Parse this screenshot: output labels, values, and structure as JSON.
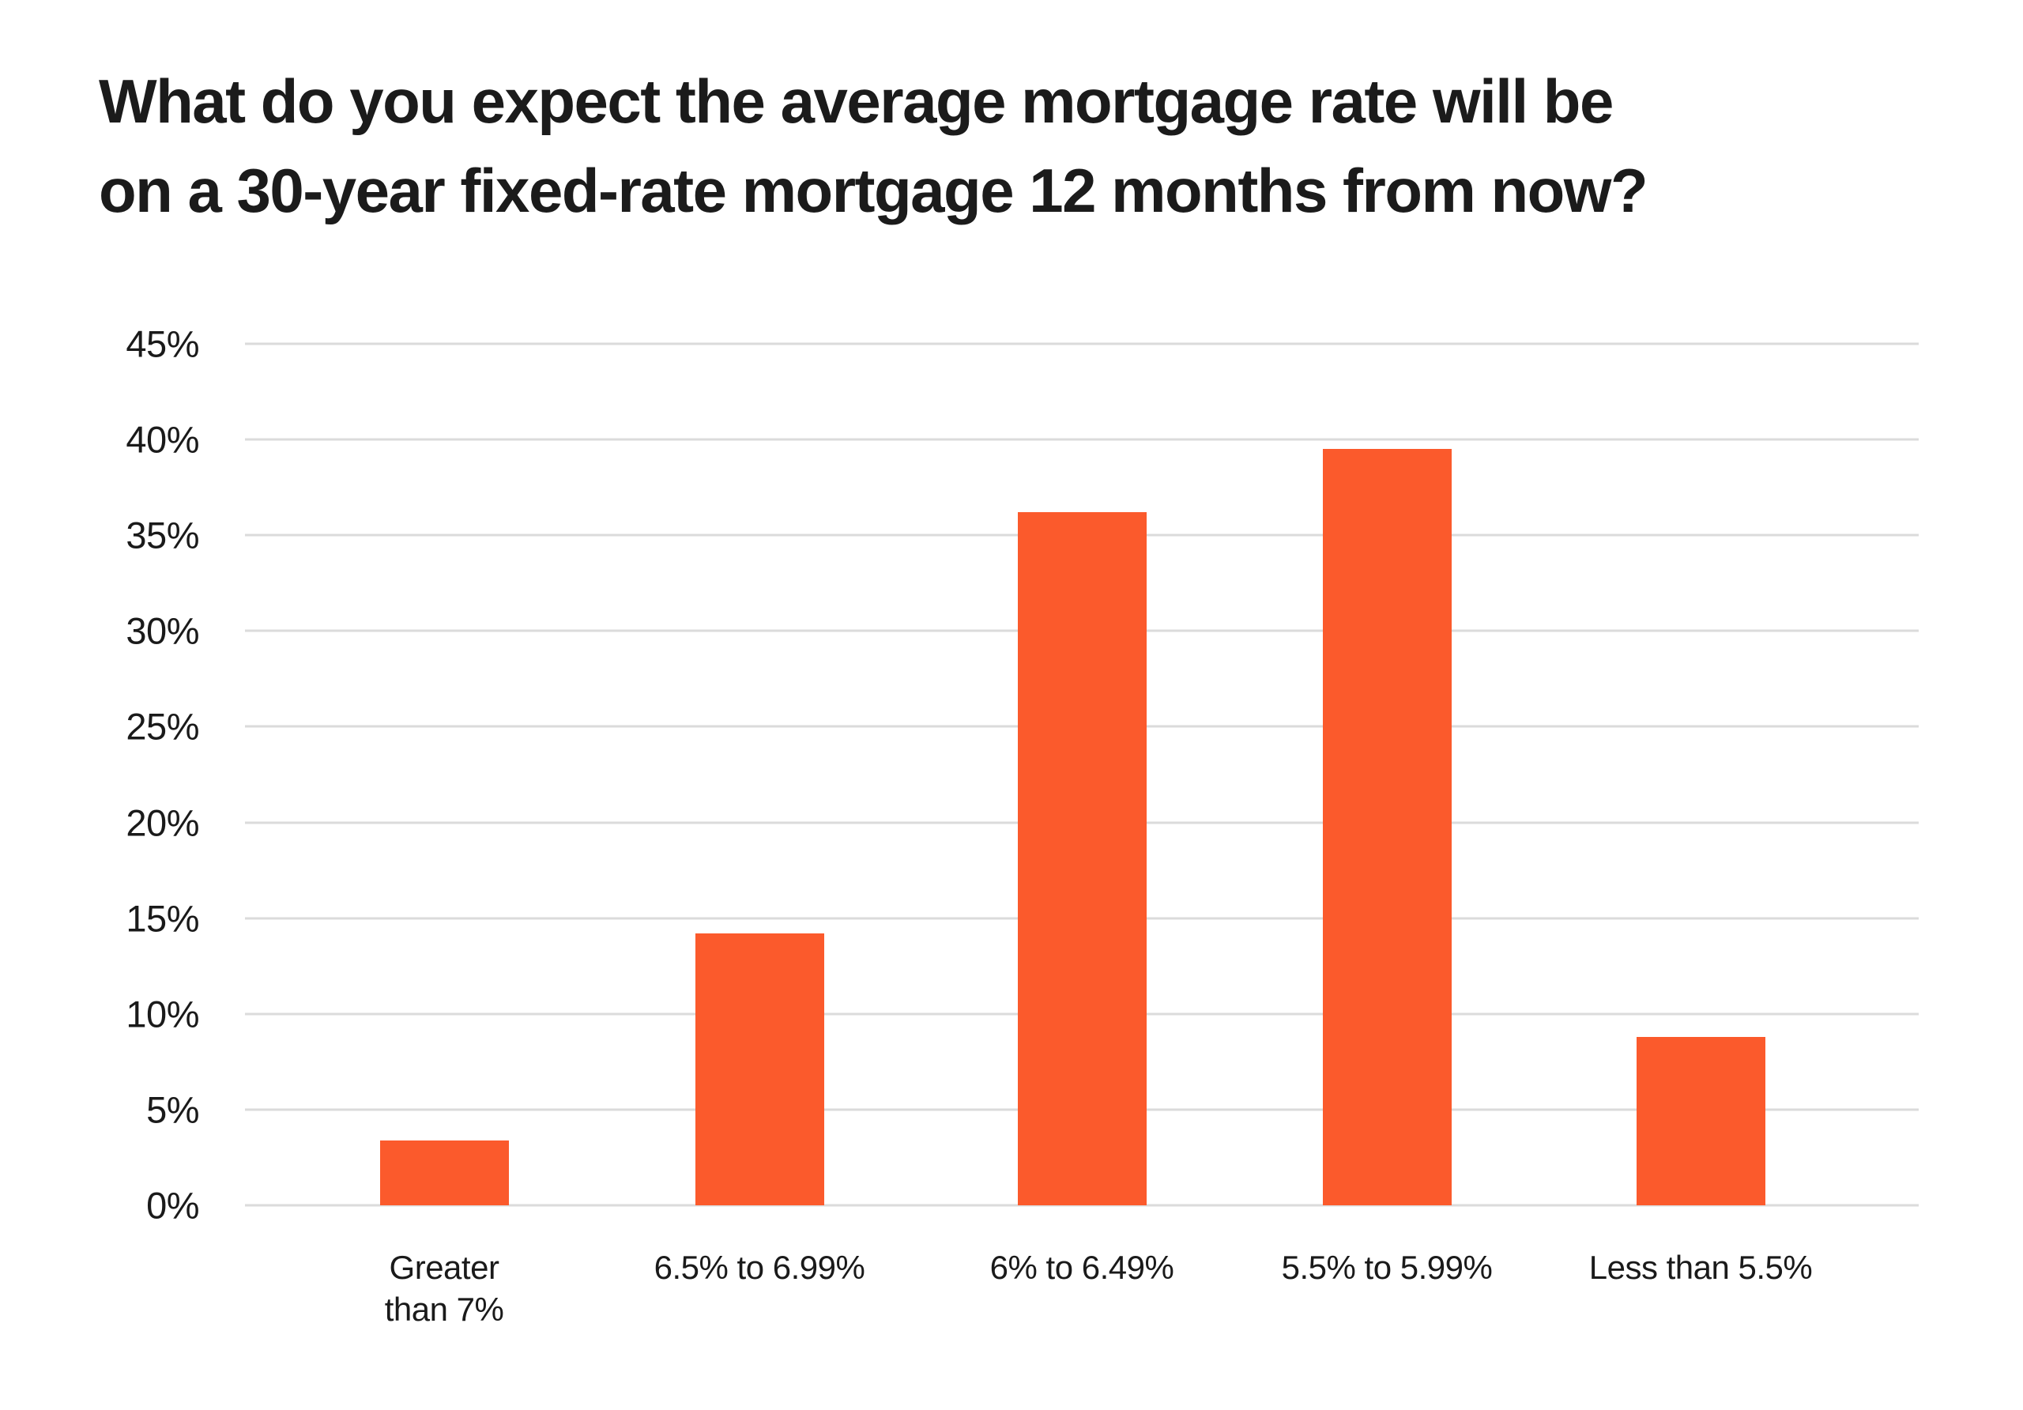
{
  "chart_data": {
    "type": "bar",
    "title": "What do you expect the average mortgage rate will be on a 30-year fixed-rate mortgage 12 months from now?",
    "title_lines": {
      "line1": "What do you expect the average mortgage rate will be",
      "line2": "on a 30-year fixed-rate mortgage 12 months from now?"
    },
    "categories": [
      "Greater than 7%",
      "6.5% to 6.99%",
      "6% to 6.49%",
      "5.5% to 5.99%",
      "Less than 5.5%"
    ],
    "category_display": [
      "Greater\nthan 7%",
      "6.5% to 6.99%",
      "6% to 6.49%",
      "5.5% to 5.99%",
      "Less than 5.5%"
    ],
    "values": [
      3.4,
      14.2,
      36.2,
      39.5,
      8.8
    ],
    "unit": "%",
    "ylabel": "",
    "xlabel": "",
    "ylim": [
      0,
      45
    ],
    "y_tick_step": 5,
    "y_ticks": [
      "45%",
      "40%",
      "35%",
      "30%",
      "25%",
      "20%",
      "15%",
      "10%",
      "5%",
      "0%"
    ],
    "grid": "horizontal",
    "legend_position": "none",
    "colors": {
      "bar": "#fb5a2c",
      "text": "#1a1a1a",
      "gridline": "#dbdbdb",
      "background": "#ffffff"
    }
  }
}
